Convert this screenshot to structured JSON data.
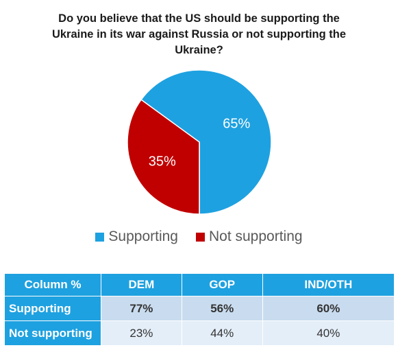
{
  "chart_data": [
    {
      "type": "pie",
      "title_lines": [
        "Do you believe that the US should be supporting the",
        "Ukraine in its war against Russia or not supporting the",
        "Ukraine?"
      ],
      "slices": [
        {
          "label": "Supporting",
          "value": 65,
          "display": "65%",
          "color": "#1ea1e0"
        },
        {
          "label": "Not supporting",
          "value": 35,
          "display": "35%",
          "color": "#c00000"
        }
      ],
      "legend_position": "bottom"
    },
    {
      "type": "table",
      "columns": [
        "Column %",
        "DEM",
        "GOP",
        "IND/OTH"
      ],
      "rows": [
        {
          "label": "Supporting",
          "values": [
            "77%",
            "56%",
            "60%"
          ]
        },
        {
          "label": "Not supporting",
          "values": [
            "23%",
            "44%",
            "40%"
          ]
        }
      ]
    }
  ]
}
